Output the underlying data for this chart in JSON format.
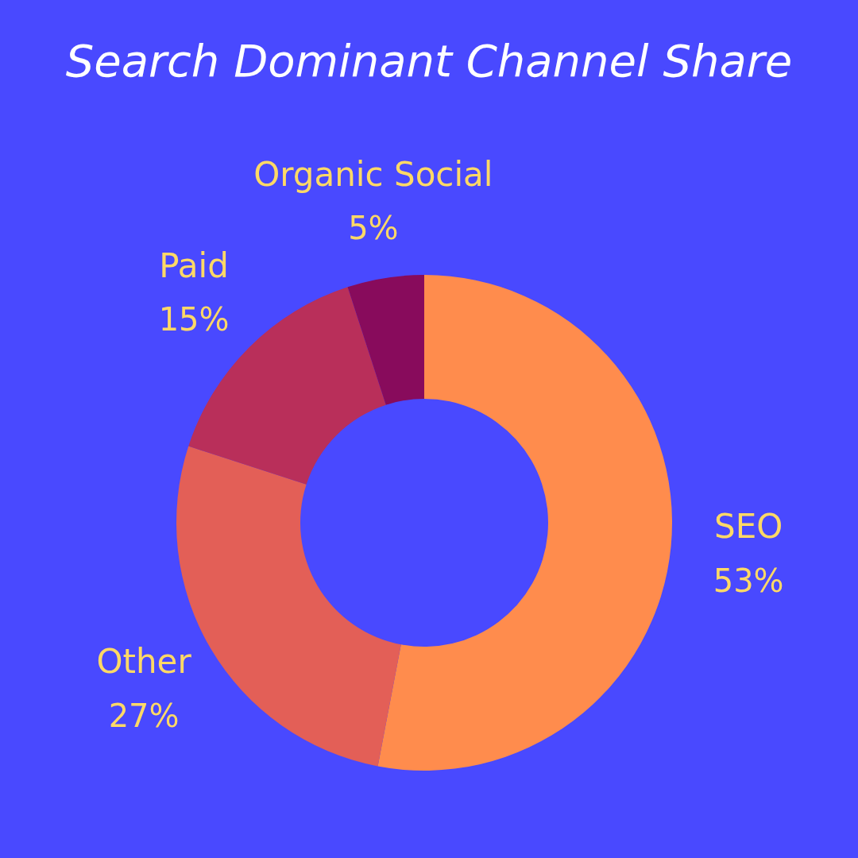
{
  "chart_data": {
    "type": "donut",
    "title": "Search Dominant Channel Share",
    "categories": [
      "SEO",
      "Other",
      "Paid",
      "Organic Social"
    ],
    "values": [
      53,
      27,
      15,
      5
    ],
    "colors": [
      "#ff8c4d",
      "#e35f57",
      "#b92f5a",
      "#880b5c"
    ],
    "value_labels": [
      "53%",
      "27%",
      "15%",
      "5%"
    ]
  }
}
